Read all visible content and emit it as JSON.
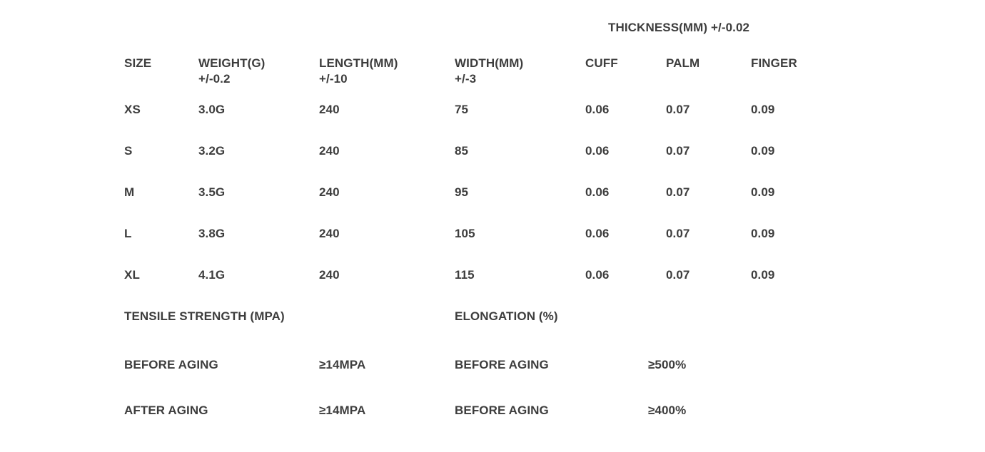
{
  "page": {
    "background": "#ffffff",
    "text_color": "#3d3d3d"
  },
  "size_table": {
    "group_header": "THICKNESS(MM) +/-0.02",
    "columns": [
      {
        "label": "SIZE",
        "sub": ""
      },
      {
        "label": "WEIGHT(G)",
        "sub": "+/-0.2"
      },
      {
        "label": "LENGTH(MM)",
        "sub": "+/-10"
      },
      {
        "label": "WIDTH(MM)",
        "sub": "+/-3"
      },
      {
        "label": "CUFF",
        "sub": ""
      },
      {
        "label": "PALM",
        "sub": ""
      },
      {
        "label": "FINGER",
        "sub": ""
      }
    ],
    "rows": [
      {
        "size": "XS",
        "weight": "3.0G",
        "length": "240",
        "width": "75",
        "cuff": "0.06",
        "palm": "0.07",
        "finger": "0.09"
      },
      {
        "size": "S",
        "weight": "3.2G",
        "length": "240",
        "width": "85",
        "cuff": "0.06",
        "palm": "0.07",
        "finger": "0.09"
      },
      {
        "size": "M",
        "weight": "3.5G",
        "length": "240",
        "width": "95",
        "cuff": "0.06",
        "palm": "0.07",
        "finger": "0.09"
      },
      {
        "size": "L",
        "weight": "3.8G",
        "length": "240",
        "width": "105",
        "cuff": "0.06",
        "palm": "0.07",
        "finger": "0.09"
      },
      {
        "size": "XL",
        "weight": "4.1G",
        "length": "240",
        "width": "115",
        "cuff": "0.06",
        "palm": "0.07",
        "finger": "0.09"
      }
    ]
  },
  "physical_properties": {
    "tensile_header": "TENSILE STRENGTH (MPA)",
    "elongation_header": "ELONGATION (%)",
    "rows": [
      {
        "tensile_label": "BEFORE AGING",
        "tensile_value": "≥14MPA",
        "elongation_label": "BEFORE AGING",
        "elongation_value": "≥500%"
      },
      {
        "tensile_label": "AFTER AGING",
        "tensile_value": "≥14MPA",
        "elongation_label": "BEFORE AGING",
        "elongation_value": "≥400%"
      }
    ]
  }
}
